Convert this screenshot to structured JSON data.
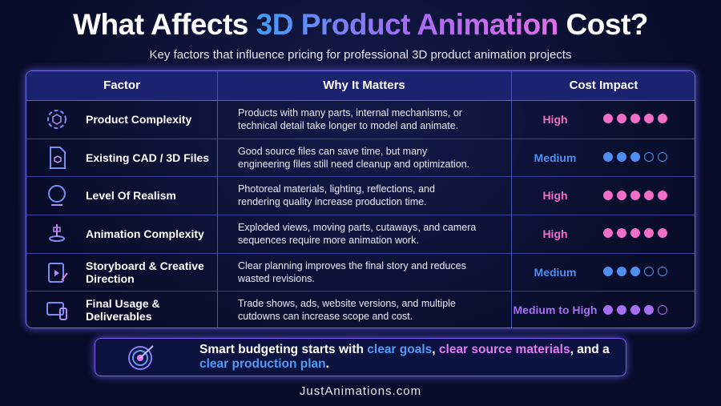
{
  "header": {
    "title": [
      {
        "text": "What Affects "
      },
      {
        "text": "3D Product Animation",
        "gradient": true
      },
      {
        "text": " Cost?"
      }
    ],
    "subtitle": "Key factors that influence pricing for professional 3D product animation projects"
  },
  "table": {
    "columns": [
      "Factor",
      "Why It Matters",
      "Cost Impact"
    ],
    "rating_max": 5,
    "rows": [
      {
        "factor": "Product Complexity",
        "why": "Products with many parts, internal mechanisms, or technical detail take longer to model and animate.",
        "impact": "High",
        "rating": 5,
        "color": "#f06ec8"
      },
      {
        "factor": "Existing CAD / 3D Files",
        "why": "Good source files can save time, but many engineering files still need cleanup and optimization.",
        "impact": "Medium",
        "rating": 3,
        "color": "#4f8ff0"
      },
      {
        "factor": "Level Of Realism",
        "why": "Photoreal materials, lighting, reflections, and rendering quality increase production time.",
        "impact": "High",
        "rating": 5,
        "color": "#f06ec8"
      },
      {
        "factor": "Animation Complexity",
        "why": "Exploded views, moving parts, cutaways, and camera sequences require more animation work.",
        "impact": "High",
        "rating": 5,
        "color": "#f06ec8"
      },
      {
        "factor": "Storyboard & Creative Direction",
        "why": "Clear planning improves the final story and reduces wasted revisions.",
        "impact": "Medium",
        "rating": 3,
        "color": "#4f8ff0"
      },
      {
        "factor": "Final Usage & Deliverables",
        "why": "Trade shows, ads, website versions, and multiple cutdowns can increase scope and cost.",
        "impact": "Medium to High",
        "rating": 4,
        "color": "#a46ef5"
      }
    ]
  },
  "callout": [
    {
      "text": "Smart budgeting starts with "
    },
    {
      "text": "clear goals",
      "color": "#4f9cf5"
    },
    {
      "text": ", "
    },
    {
      "text": "clear source materials",
      "color": "#e07af0"
    },
    {
      "text": ", and a "
    },
    {
      "text": "clear production plan",
      "color": "#4f9cf5"
    },
    {
      "text": "."
    }
  ],
  "footer": "JustAnimations.com"
}
